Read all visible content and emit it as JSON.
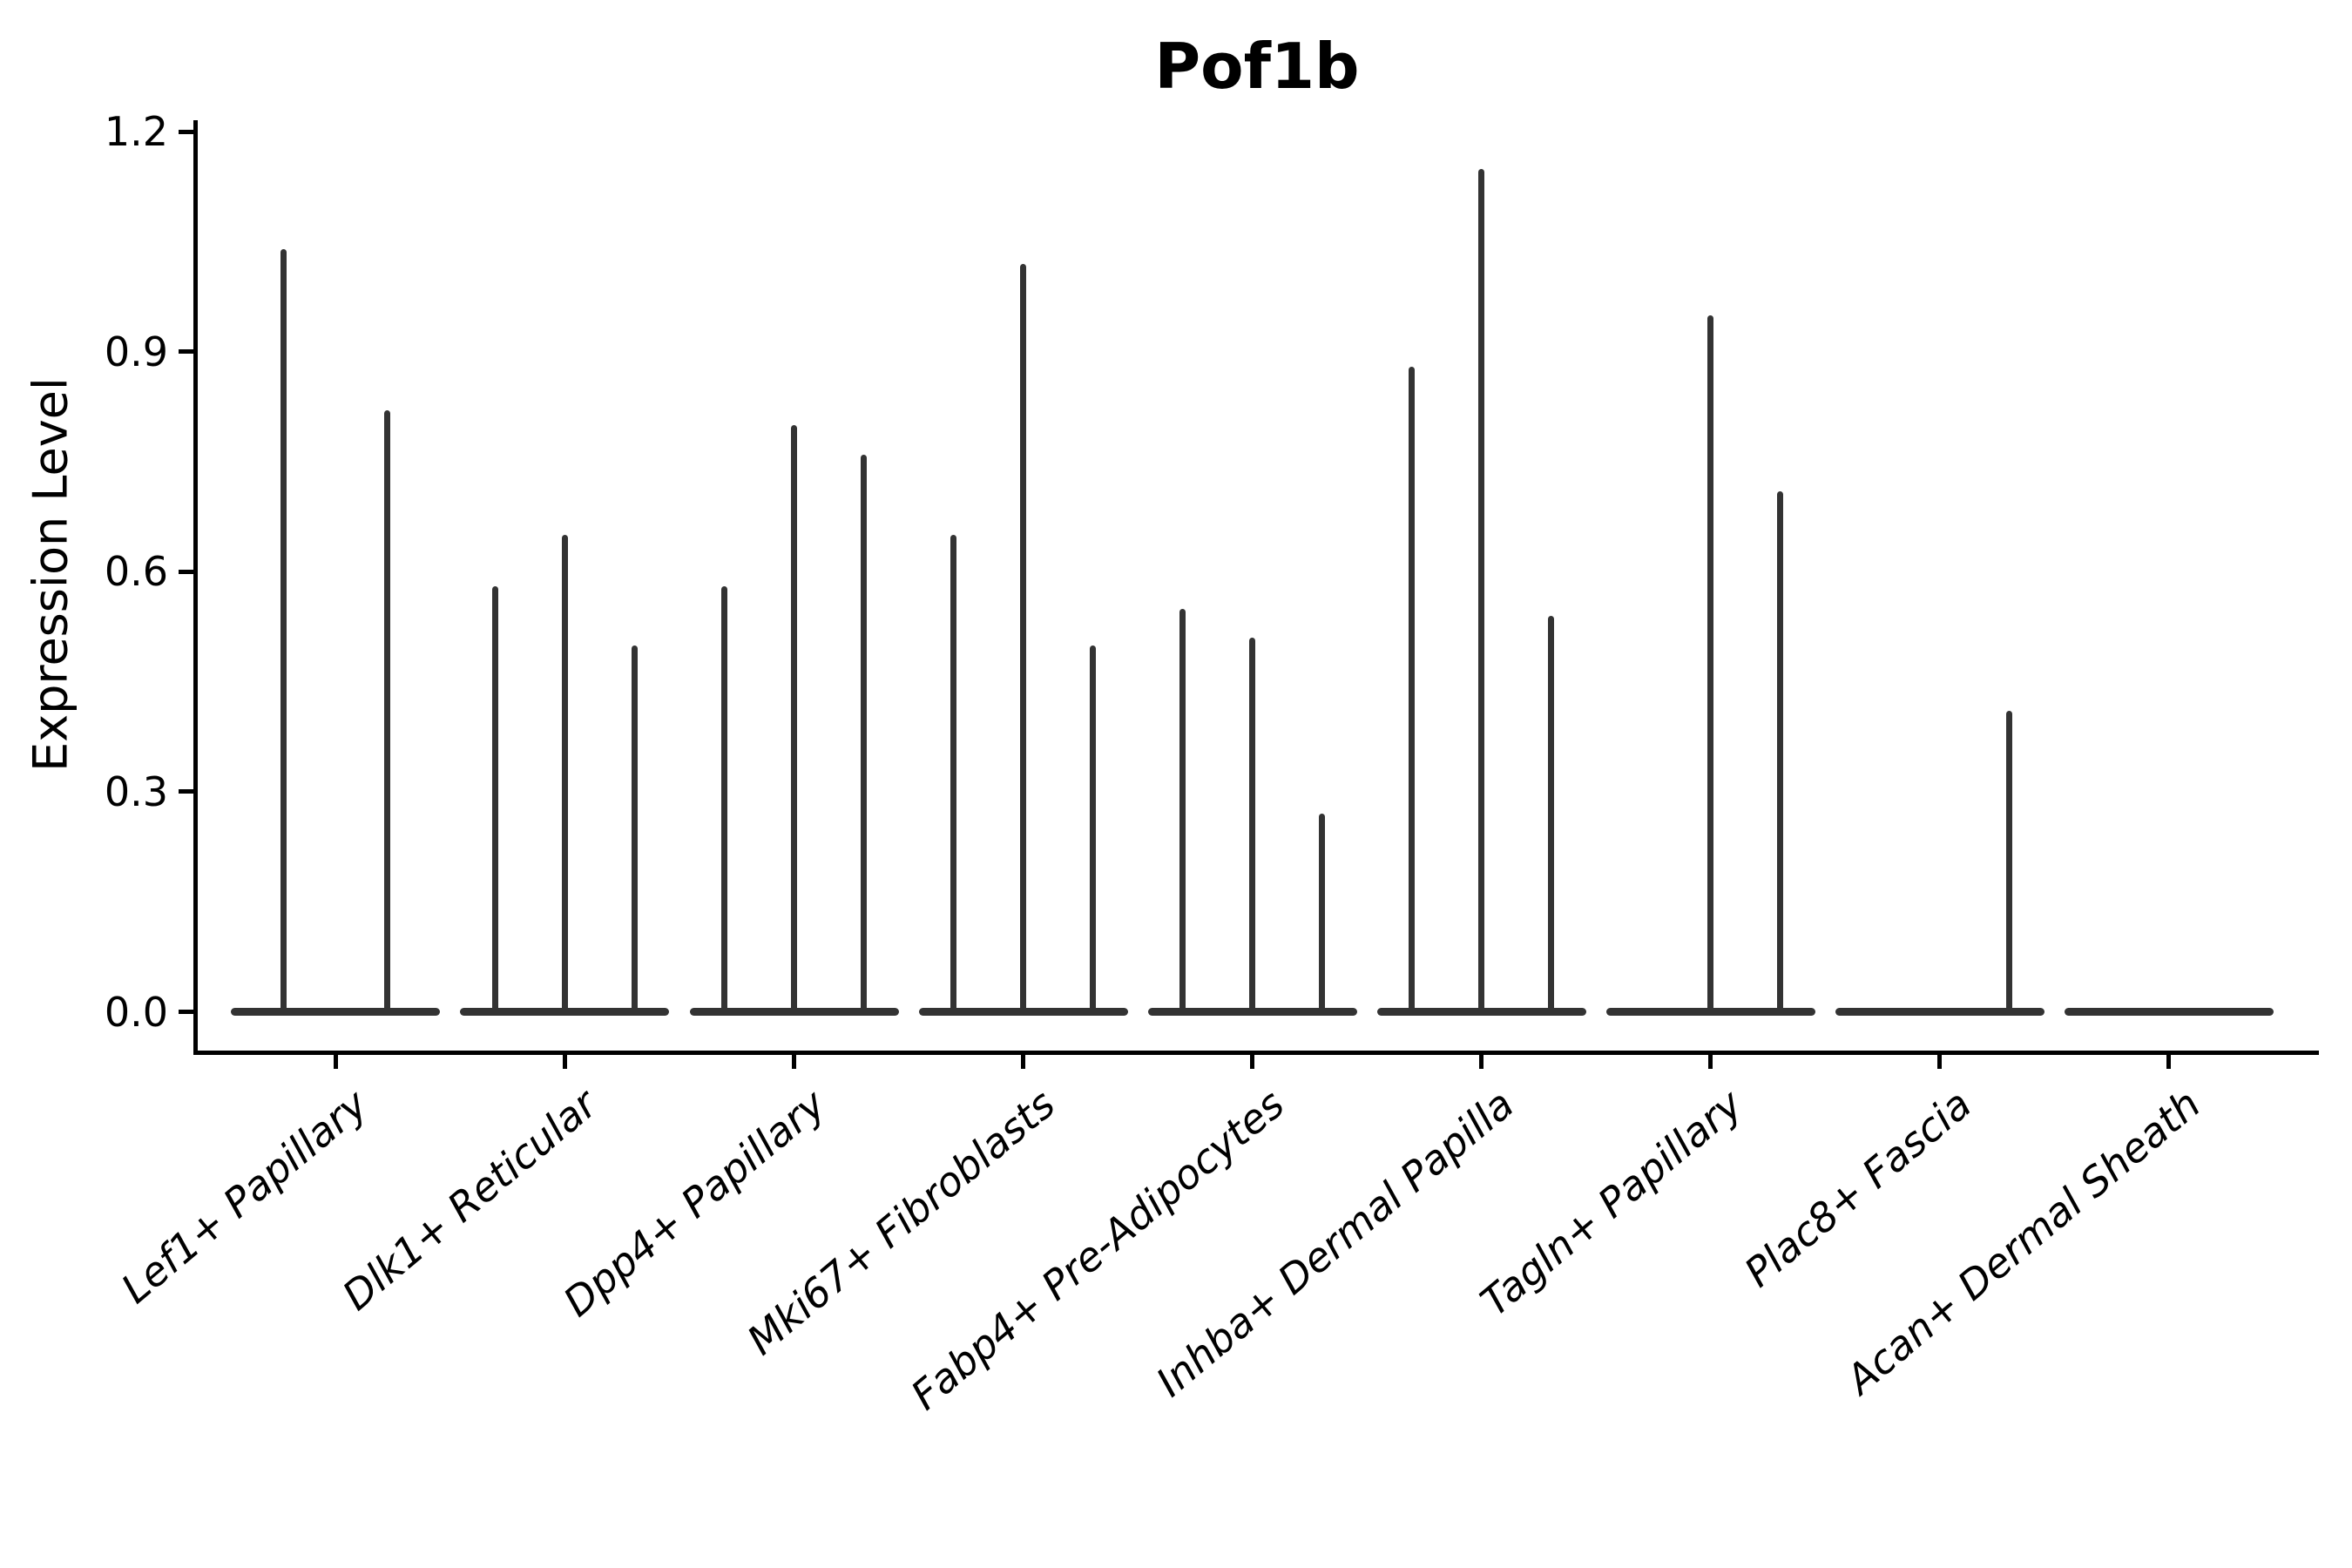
{
  "title": "Pof1b",
  "ylabel": "Expression Level",
  "colors": {
    "violin": "#333333",
    "axis": "#000000",
    "background": "#ffffff"
  },
  "chart_data": {
    "type": "violin",
    "title": "Pof1b",
    "xlabel": "",
    "ylabel": "Expression Level",
    "ylim": [
      0.0,
      1.2
    ],
    "grid": false,
    "legend": "none",
    "yticks": [
      {
        "value": 0.0,
        "label": "0.0"
      },
      {
        "value": 0.3,
        "label": "0.3"
      },
      {
        "value": 0.6,
        "label": "0.6"
      },
      {
        "value": 0.9,
        "label": "0.9"
      },
      {
        "value": 1.2,
        "label": "1.2"
      }
    ],
    "description": "Ultra-thin violins: bulk of density is a flat pancake at 0 expression, with a thin vertical spike up to the maximum expression value per violin. Violins are grouped per cell-type category (2-3 violins per category); max of 0 means a flat violin with no spike.",
    "categories": [
      {
        "label": "Lef1+ Papillary",
        "violins": [
          {
            "offset": -59.5,
            "max": 1.04
          },
          {
            "offset": 59.5,
            "max": 0.82
          }
        ]
      },
      {
        "label": "Dlk1+ Reticular",
        "violins": [
          {
            "offset": -80,
            "max": 0.58
          },
          {
            "offset": 0,
            "max": 0.65
          },
          {
            "offset": 80,
            "max": 0.5
          }
        ]
      },
      {
        "label": "Dpp4+ Papillary",
        "violins": [
          {
            "offset": -80,
            "max": 0.58
          },
          {
            "offset": 0,
            "max": 0.8
          },
          {
            "offset": 80,
            "max": 0.76
          }
        ]
      },
      {
        "label": "Mki67+ Fibroblasts",
        "violins": [
          {
            "offset": -80,
            "max": 0.65
          },
          {
            "offset": 0,
            "max": 1.02
          },
          {
            "offset": 80,
            "max": 0.5
          }
        ]
      },
      {
        "label": "Fabp4+ Pre-Adipocytes",
        "violins": [
          {
            "offset": -80,
            "max": 0.55
          },
          {
            "offset": 0,
            "max": 0.51
          },
          {
            "offset": 80,
            "max": 0.27
          }
        ]
      },
      {
        "label": "Inhba+ Dermal Papilla",
        "violins": [
          {
            "offset": -80,
            "max": 0.88
          },
          {
            "offset": 0,
            "max": 1.15
          },
          {
            "offset": 80,
            "max": 0.54
          }
        ]
      },
      {
        "label": "Tagln+ Papillary",
        "violins": [
          {
            "offset": -80,
            "max": 0
          },
          {
            "offset": 0,
            "max": 0.95
          },
          {
            "offset": 80,
            "max": 0.71
          }
        ]
      },
      {
        "label": "Plac8+ Fascia",
        "violins": [
          {
            "offset": -80,
            "max": 0
          },
          {
            "offset": 0,
            "max": 0
          },
          {
            "offset": 80,
            "max": 0.41
          }
        ]
      },
      {
        "label": "Acan+ Dermal Sheath",
        "violins": [
          {
            "offset": -80,
            "max": 0
          },
          {
            "offset": 0,
            "max": 0
          },
          {
            "offset": 80,
            "max": 0
          }
        ]
      }
    ]
  }
}
